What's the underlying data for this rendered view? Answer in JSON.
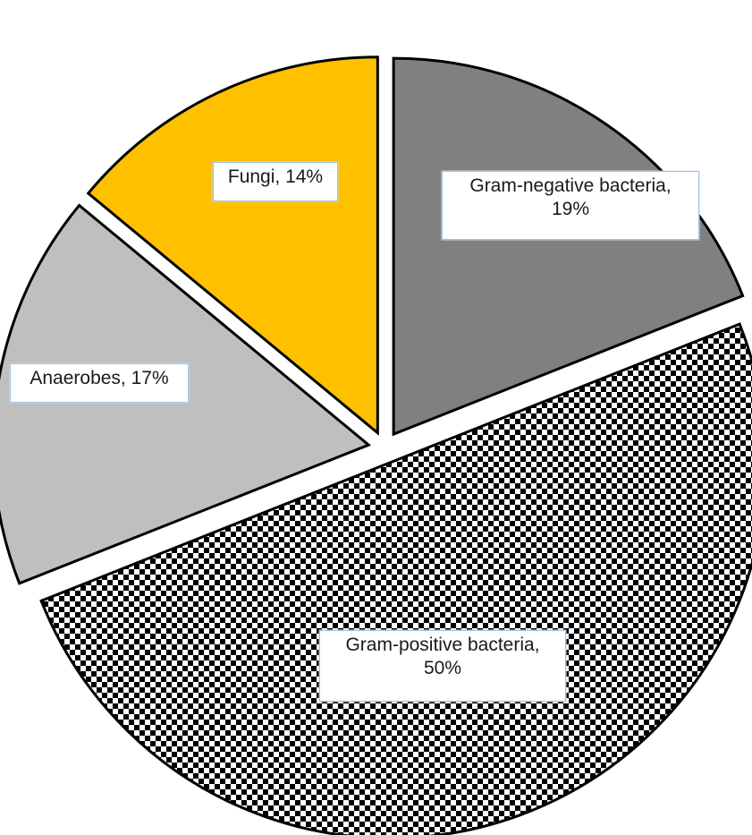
{
  "chart_data": {
    "type": "pie",
    "exploded": true,
    "legend": "none",
    "slices": [
      {
        "category": "Gram-negative bacteria",
        "value": 19,
        "line1": "Gram-negative bacteria,",
        "line2": "19%",
        "fill": "#808080",
        "pattern": "solid"
      },
      {
        "category": "Gram-positive bacteria",
        "value": 50,
        "line1": "Gram-positive bacteria,",
        "line2": "50%",
        "fill": "#000000",
        "pattern": "checkerboard"
      },
      {
        "category": "Anaerobes",
        "value": 17,
        "line1": "Anaerobes, 17%",
        "fill": "#bfbfbf",
        "pattern": "solid"
      },
      {
        "category": "Fungi",
        "value": 14,
        "line1": "Fungi, 14%",
        "fill": "#ffc000",
        "pattern": "solid"
      }
    ]
  }
}
